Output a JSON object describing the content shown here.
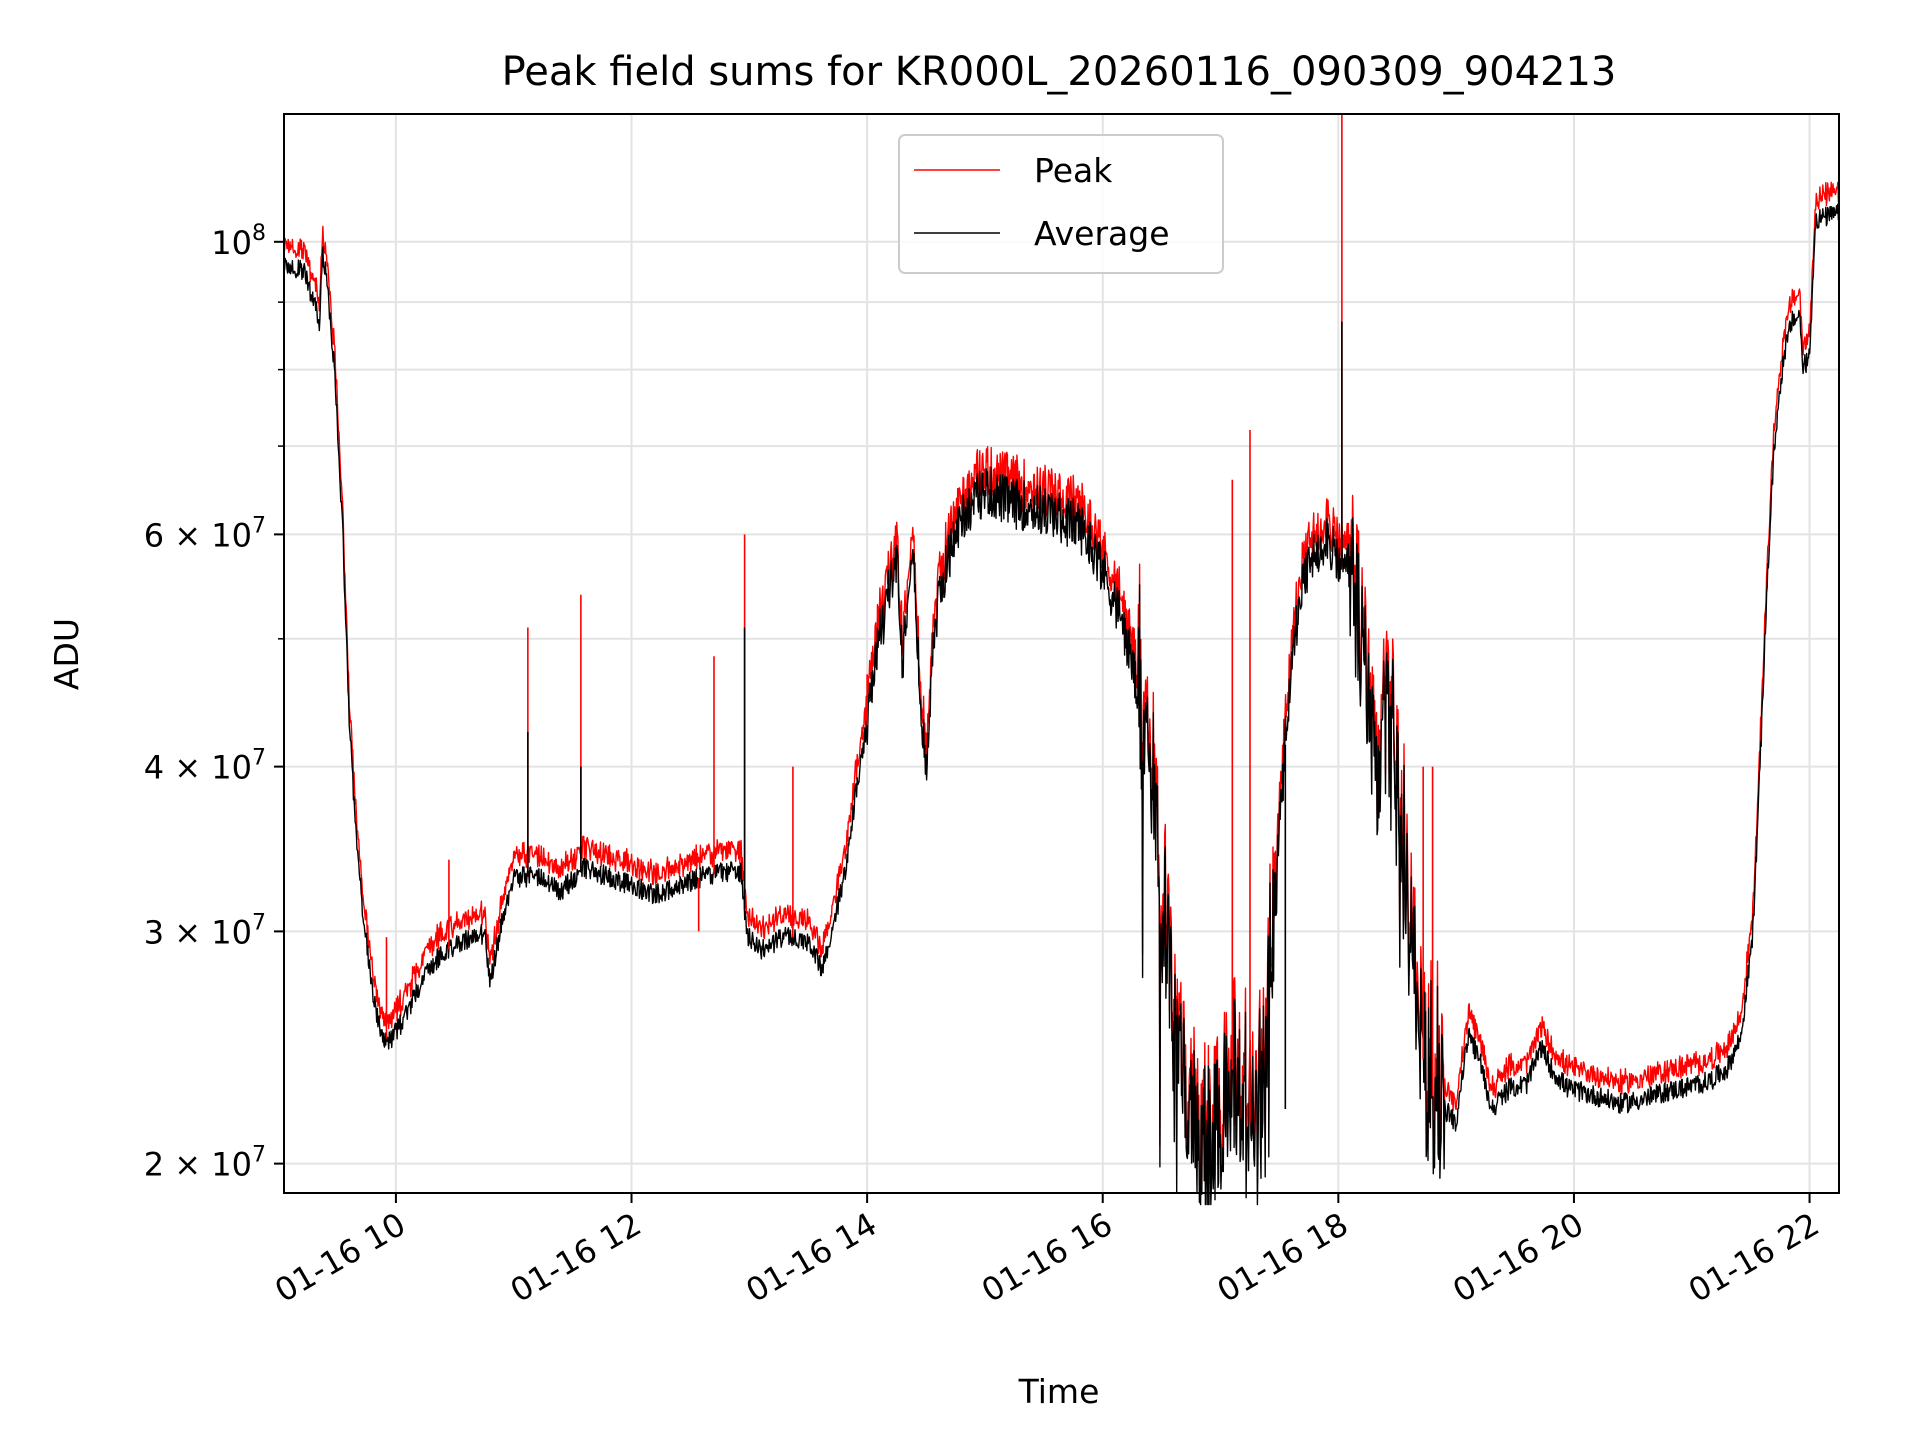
{
  "chart_data": {
    "type": "line",
    "title": "Peak field sums for KR000L_20260116_090309_904213",
    "xlabel": "Time",
    "ylabel": "ADU",
    "yscale": "log",
    "ylim": [
      19000000,
      125000000
    ],
    "xlim_hours": [
      9.05,
      22.25
    ],
    "grid": true,
    "legend_position": "upper center",
    "x_ticks": [
      {
        "hour": 10,
        "label": "01-16 10"
      },
      {
        "hour": 12,
        "label": "01-16 12"
      },
      {
        "hour": 14,
        "label": "01-16 14"
      },
      {
        "hour": 16,
        "label": "01-16 16"
      },
      {
        "hour": 18,
        "label": "01-16 18"
      },
      {
        "hour": 20,
        "label": "01-16 20"
      },
      {
        "hour": 22,
        "label": "01-16 22"
      }
    ],
    "y_major_ticks": [
      {
        "value": 20000000,
        "base": "2",
        "exp": "7"
      },
      {
        "value": 30000000,
        "base": "3",
        "exp": "7"
      },
      {
        "value": 40000000,
        "base": "4",
        "exp": "7"
      },
      {
        "value": 60000000,
        "base": "6",
        "exp": "7"
      },
      {
        "value": 100000000,
        "base": "",
        "exp": "8"
      }
    ],
    "y_minor_gridlines": [
      50000000,
      70000000,
      80000000,
      90000000
    ],
    "tick_multiply_sign": "×",
    "tick_base_ten": "10",
    "series": [
      {
        "name": "Peak",
        "color": "#ff0000",
        "spike_ratio": 1.03,
        "spikes": [
          {
            "hour": 9.92,
            "value": 29700000
          },
          {
            "hour": 10.45,
            "value": 34000000
          },
          {
            "hour": 11.12,
            "value": 51000000
          },
          {
            "hour": 11.57,
            "value": 54000000
          },
          {
            "hour": 12.57,
            "value": 30000000
          },
          {
            "hour": 12.7,
            "value": 48500000
          },
          {
            "hour": 12.96,
            "value": 60000000
          },
          {
            "hour": 13.37,
            "value": 40000000
          },
          {
            "hour": 14.0,
            "value": 47000000
          },
          {
            "hour": 17.1,
            "value": 66000000
          },
          {
            "hour": 17.25,
            "value": 72000000
          },
          {
            "hour": 18.03,
            "value": 125000000
          },
          {
            "hour": 18.72,
            "value": 40000000
          },
          {
            "hour": 18.8,
            "value": 40000000
          }
        ]
      },
      {
        "name": "Average",
        "color": "#000000",
        "spikes": [
          {
            "hour": 11.12,
            "value": 42500000
          },
          {
            "hour": 11.57,
            "value": 40000000
          },
          {
            "hour": 12.96,
            "value": 51000000
          },
          {
            "hour": 18.03,
            "value": 87000000
          },
          {
            "hour": 17.55,
            "value": 22000000
          }
        ],
        "profile": [
          [
            9.05,
            96000000
          ],
          [
            9.15,
            95500000
          ],
          [
            9.22,
            95000000
          ],
          [
            9.3,
            90000000
          ],
          [
            9.35,
            87000000
          ],
          [
            9.38,
            98000000
          ],
          [
            9.42,
            92000000
          ],
          [
            9.48,
            80000000
          ],
          [
            9.55,
            60000000
          ],
          [
            9.6,
            44000000
          ],
          [
            9.65,
            37000000
          ],
          [
            9.72,
            31000000
          ],
          [
            9.8,
            27000000
          ],
          [
            9.88,
            25000000
          ],
          [
            9.95,
            24800000
          ],
          [
            10.05,
            25600000
          ],
          [
            10.2,
            27300000
          ],
          [
            10.35,
            28600000
          ],
          [
            10.5,
            29300000
          ],
          [
            10.65,
            29700000
          ],
          [
            10.75,
            29900000
          ],
          [
            10.8,
            27500000
          ],
          [
            10.9,
            30500000
          ],
          [
            11.0,
            33000000
          ],
          [
            11.2,
            33000000
          ],
          [
            11.4,
            32200000
          ],
          [
            11.6,
            33500000
          ],
          [
            11.8,
            33000000
          ],
          [
            12.0,
            32500000
          ],
          [
            12.2,
            32000000
          ],
          [
            12.4,
            32500000
          ],
          [
            12.6,
            33000000
          ],
          [
            12.8,
            33300000
          ],
          [
            12.93,
            33300000
          ],
          [
            12.98,
            29800000
          ],
          [
            13.1,
            29000000
          ],
          [
            13.3,
            29800000
          ],
          [
            13.5,
            29500000
          ],
          [
            13.62,
            28000000
          ],
          [
            13.72,
            30500000
          ],
          [
            13.82,
            33500000
          ],
          [
            13.9,
            38000000
          ],
          [
            14.0,
            43000000
          ],
          [
            14.1,
            50000000
          ],
          [
            14.2,
            55000000
          ],
          [
            14.25,
            58000000
          ],
          [
            14.3,
            48000000
          ],
          [
            14.38,
            60000000
          ],
          [
            14.45,
            45000000
          ],
          [
            14.5,
            39500000
          ],
          [
            14.56,
            50000000
          ],
          [
            14.65,
            56000000
          ],
          [
            14.8,
            62000000
          ],
          [
            15.0,
            65000000
          ],
          [
            15.2,
            63500000
          ],
          [
            15.4,
            63000000
          ],
          [
            15.6,
            62000000
          ],
          [
            15.8,
            61000000
          ],
          [
            15.95,
            58000000
          ],
          [
            16.05,
            55000000
          ],
          [
            16.15,
            52000000
          ],
          [
            16.25,
            48000000
          ],
          [
            16.35,
            42000000
          ],
          [
            16.45,
            35000000
          ],
          [
            16.55,
            30000000
          ],
          [
            16.65,
            25000000
          ],
          [
            16.75,
            22000000
          ],
          [
            16.85,
            21000000
          ],
          [
            17.0,
            21500000
          ],
          [
            17.12,
            24000000
          ],
          [
            17.2,
            21000000
          ],
          [
            17.3,
            22000000
          ],
          [
            17.4,
            26000000
          ],
          [
            17.5,
            36000000
          ],
          [
            17.6,
            48000000
          ],
          [
            17.7,
            55000000
          ],
          [
            17.8,
            58000000
          ],
          [
            17.9,
            60000000
          ],
          [
            18.0,
            57000000
          ],
          [
            18.1,
            57000000
          ],
          [
            18.2,
            50000000
          ],
          [
            18.3,
            40000000
          ],
          [
            18.45,
            44000000
          ],
          [
            18.55,
            33000000
          ],
          [
            18.65,
            28000000
          ],
          [
            18.72,
            24000000
          ],
          [
            18.8,
            22500000
          ],
          [
            18.9,
            22000000
          ],
          [
            19.0,
            21500000
          ],
          [
            19.1,
            25000000
          ],
          [
            19.2,
            24000000
          ],
          [
            19.3,
            22000000
          ],
          [
            19.45,
            22800000
          ],
          [
            19.6,
            23000000
          ],
          [
            19.72,
            24500000
          ],
          [
            19.82,
            23500000
          ],
          [
            19.95,
            22800000
          ],
          [
            20.2,
            22500000
          ],
          [
            20.4,
            22200000
          ],
          [
            20.6,
            22400000
          ],
          [
            20.8,
            22700000
          ],
          [
            21.0,
            22900000
          ],
          [
            21.15,
            23100000
          ],
          [
            21.3,
            23600000
          ],
          [
            21.42,
            25000000
          ],
          [
            21.52,
            30000000
          ],
          [
            21.58,
            40000000
          ],
          [
            21.64,
            55000000
          ],
          [
            21.7,
            70000000
          ],
          [
            21.78,
            82000000
          ],
          [
            21.85,
            87000000
          ],
          [
            21.92,
            88000000
          ],
          [
            21.94,
            80000000
          ],
          [
            22.0,
            82000000
          ],
          [
            22.05,
            104000000
          ],
          [
            22.15,
            104500000
          ],
          [
            22.25,
            105000000
          ]
        ]
      }
    ]
  }
}
